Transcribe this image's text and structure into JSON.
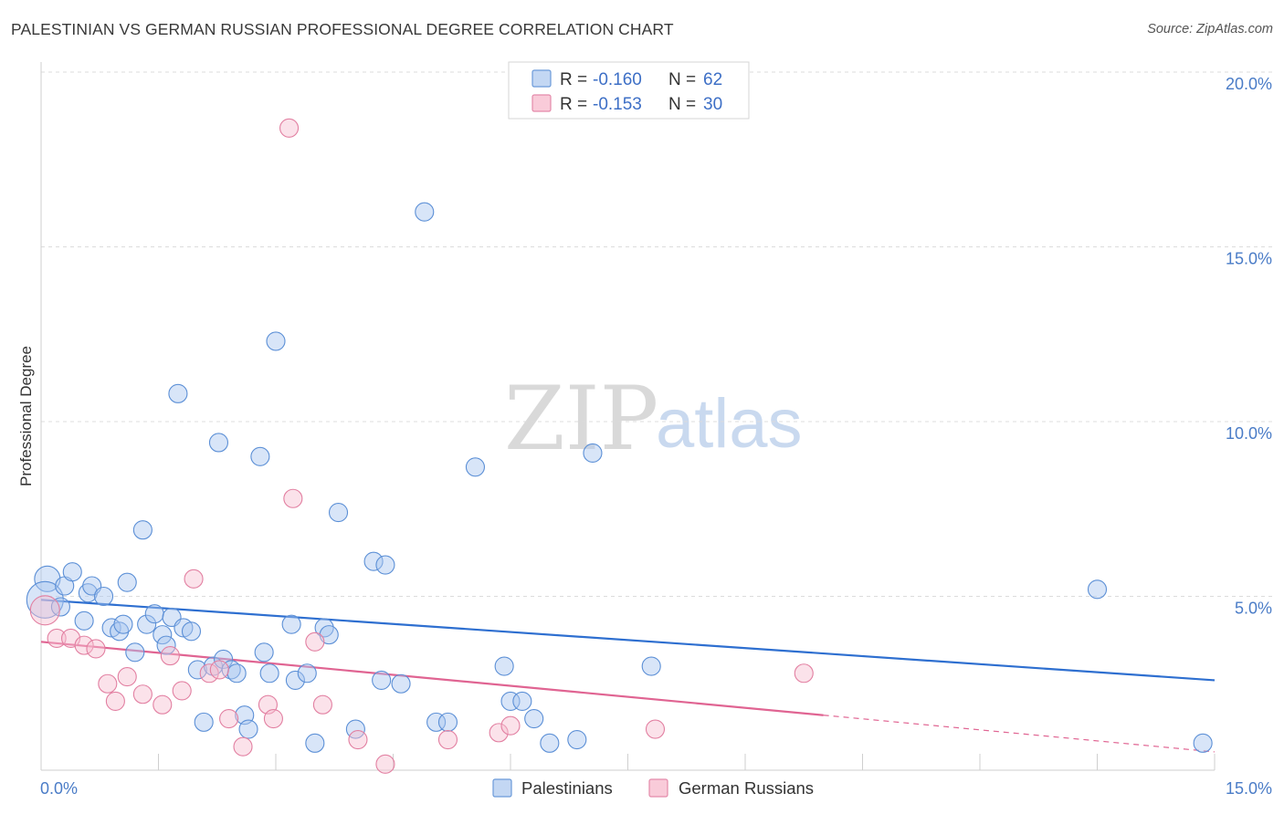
{
  "title": "PALESTINIAN VS GERMAN RUSSIAN PROFESSIONAL DEGREE CORRELATION CHART",
  "source": "Source: ZipAtlas.com",
  "chart_data": {
    "type": "scatter",
    "xlabel": "",
    "ylabel": "Professional Degree",
    "xlim": [
      0,
      15
    ],
    "ylim": [
      0,
      20
    ],
    "x_tick_labels": [
      "0.0%",
      "15.0%"
    ],
    "y_tick_labels": [
      "5.0%",
      "10.0%",
      "15.0%",
      "20.0%"
    ],
    "y_ticks": [
      5,
      10,
      15,
      20
    ],
    "watermark": {
      "zip": "ZIP",
      "atlas": "atlas"
    },
    "legend": {
      "r_label": "R =",
      "n_label": "N =",
      "entries": [
        {
          "name": "Palestinians",
          "r": "-0.160",
          "n": "62",
          "color": "#a9c6ef",
          "stroke": "#5b8fd6"
        },
        {
          "name": "German Russians",
          "r": "-0.153",
          "n": "30",
          "color": "#f7bfd0",
          "stroke": "#e27fa1"
        }
      ]
    },
    "series": [
      {
        "name": "Palestinians",
        "trend": {
          "x0": 0,
          "y0": 4.9,
          "x1": 15,
          "y1": 2.6,
          "color": "#2e6fd0"
        },
        "points": [
          {
            "x": 0.08,
            "y": 5.5,
            "s": 14
          },
          {
            "x": 0.05,
            "y": 4.9,
            "s": 20
          },
          {
            "x": 0.25,
            "y": 4.7,
            "s": 10
          },
          {
            "x": 0.3,
            "y": 5.3,
            "s": 10
          },
          {
            "x": 0.4,
            "y": 5.7,
            "s": 10
          },
          {
            "x": 0.55,
            "y": 4.3,
            "s": 10
          },
          {
            "x": 0.6,
            "y": 5.1,
            "s": 10
          },
          {
            "x": 0.65,
            "y": 5.3,
            "s": 10
          },
          {
            "x": 0.8,
            "y": 5.0,
            "s": 10
          },
          {
            "x": 0.9,
            "y": 4.1,
            "s": 10
          },
          {
            "x": 1.0,
            "y": 4.0,
            "s": 10
          },
          {
            "x": 1.05,
            "y": 4.2,
            "s": 10
          },
          {
            "x": 1.1,
            "y": 5.4,
            "s": 10
          },
          {
            "x": 1.2,
            "y": 3.4,
            "s": 10
          },
          {
            "x": 1.3,
            "y": 6.9,
            "s": 10
          },
          {
            "x": 1.35,
            "y": 4.2,
            "s": 10
          },
          {
            "x": 1.45,
            "y": 4.5,
            "s": 10
          },
          {
            "x": 1.55,
            "y": 3.9,
            "s": 10
          },
          {
            "x": 1.6,
            "y": 3.6,
            "s": 10
          },
          {
            "x": 1.67,
            "y": 4.4,
            "s": 10
          },
          {
            "x": 1.75,
            "y": 10.8,
            "s": 10
          },
          {
            "x": 1.82,
            "y": 4.1,
            "s": 10
          },
          {
            "x": 1.92,
            "y": 4.0,
            "s": 10
          },
          {
            "x": 2.0,
            "y": 2.9,
            "s": 10
          },
          {
            "x": 2.08,
            "y": 1.4,
            "s": 10
          },
          {
            "x": 2.2,
            "y": 3.0,
            "s": 10
          },
          {
            "x": 2.27,
            "y": 9.4,
            "s": 10
          },
          {
            "x": 2.33,
            "y": 3.2,
            "s": 10
          },
          {
            "x": 2.43,
            "y": 2.9,
            "s": 10
          },
          {
            "x": 2.5,
            "y": 2.8,
            "s": 10
          },
          {
            "x": 2.6,
            "y": 1.6,
            "s": 10
          },
          {
            "x": 2.65,
            "y": 1.2,
            "s": 10
          },
          {
            "x": 2.8,
            "y": 9.0,
            "s": 10
          },
          {
            "x": 2.85,
            "y": 3.4,
            "s": 10
          },
          {
            "x": 2.92,
            "y": 2.8,
            "s": 10
          },
          {
            "x": 3.0,
            "y": 12.3,
            "s": 10
          },
          {
            "x": 3.2,
            "y": 4.2,
            "s": 10
          },
          {
            "x": 3.25,
            "y": 2.6,
            "s": 10
          },
          {
            "x": 3.4,
            "y": 2.8,
            "s": 10
          },
          {
            "x": 3.5,
            "y": 0.8,
            "s": 10
          },
          {
            "x": 3.62,
            "y": 4.1,
            "s": 10
          },
          {
            "x": 3.68,
            "y": 3.9,
            "s": 10
          },
          {
            "x": 3.8,
            "y": 7.4,
            "s": 10
          },
          {
            "x": 4.02,
            "y": 1.2,
            "s": 10
          },
          {
            "x": 4.25,
            "y": 6.0,
            "s": 10
          },
          {
            "x": 4.4,
            "y": 5.9,
            "s": 10
          },
          {
            "x": 4.35,
            "y": 2.6,
            "s": 10
          },
          {
            "x": 4.6,
            "y": 2.5,
            "s": 10
          },
          {
            "x": 4.9,
            "y": 16.0,
            "s": 10
          },
          {
            "x": 5.05,
            "y": 1.4,
            "s": 10
          },
          {
            "x": 5.2,
            "y": 1.4,
            "s": 10
          },
          {
            "x": 5.55,
            "y": 8.7,
            "s": 10
          },
          {
            "x": 5.92,
            "y": 3.0,
            "s": 10
          },
          {
            "x": 6.0,
            "y": 2.0,
            "s": 10
          },
          {
            "x": 6.15,
            "y": 2.0,
            "s": 10
          },
          {
            "x": 6.3,
            "y": 1.5,
            "s": 10
          },
          {
            "x": 6.5,
            "y": 0.8,
            "s": 10
          },
          {
            "x": 6.85,
            "y": 0.9,
            "s": 10
          },
          {
            "x": 7.05,
            "y": 9.1,
            "s": 10
          },
          {
            "x": 7.8,
            "y": 3.0,
            "s": 10
          },
          {
            "x": 13.5,
            "y": 5.2,
            "s": 10
          },
          {
            "x": 14.85,
            "y": 0.8,
            "s": 10
          }
        ]
      },
      {
        "name": "German Russians",
        "trend": {
          "x0": 0,
          "y0": 3.7,
          "x1": 10.0,
          "y1": 1.6,
          "dash_x1": 15,
          "dash_y1": 0.55,
          "color": "#e06492"
        },
        "points": [
          {
            "x": 0.05,
            "y": 4.6,
            "s": 16
          },
          {
            "x": 0.2,
            "y": 3.8,
            "s": 10
          },
          {
            "x": 0.38,
            "y": 3.8,
            "s": 10
          },
          {
            "x": 0.55,
            "y": 3.6,
            "s": 10
          },
          {
            "x": 0.7,
            "y": 3.5,
            "s": 10
          },
          {
            "x": 0.85,
            "y": 2.5,
            "s": 10
          },
          {
            "x": 0.95,
            "y": 2.0,
            "s": 10
          },
          {
            "x": 1.1,
            "y": 2.7,
            "s": 10
          },
          {
            "x": 1.3,
            "y": 2.2,
            "s": 10
          },
          {
            "x": 1.55,
            "y": 1.9,
            "s": 10
          },
          {
            "x": 1.65,
            "y": 3.3,
            "s": 10
          },
          {
            "x": 1.8,
            "y": 2.3,
            "s": 10
          },
          {
            "x": 1.95,
            "y": 5.5,
            "s": 10
          },
          {
            "x": 2.15,
            "y": 2.8,
            "s": 10
          },
          {
            "x": 2.28,
            "y": 2.9,
            "s": 10
          },
          {
            "x": 2.4,
            "y": 1.5,
            "s": 10
          },
          {
            "x": 2.58,
            "y": 0.7,
            "s": 10
          },
          {
            "x": 2.9,
            "y": 1.9,
            "s": 10
          },
          {
            "x": 2.97,
            "y": 1.5,
            "s": 10
          },
          {
            "x": 3.17,
            "y": 18.4,
            "s": 10
          },
          {
            "x": 3.22,
            "y": 7.8,
            "s": 10
          },
          {
            "x": 3.5,
            "y": 3.7,
            "s": 10
          },
          {
            "x": 3.6,
            "y": 1.9,
            "s": 10
          },
          {
            "x": 4.05,
            "y": 0.9,
            "s": 10
          },
          {
            "x": 4.4,
            "y": 0.2,
            "s": 10
          },
          {
            "x": 5.2,
            "y": 0.9,
            "s": 10
          },
          {
            "x": 5.85,
            "y": 1.1,
            "s": 10
          },
          {
            "x": 6.0,
            "y": 1.3,
            "s": 10
          },
          {
            "x": 7.85,
            "y": 1.2,
            "s": 10
          },
          {
            "x": 9.75,
            "y": 2.8,
            "s": 10
          }
        ]
      }
    ]
  }
}
